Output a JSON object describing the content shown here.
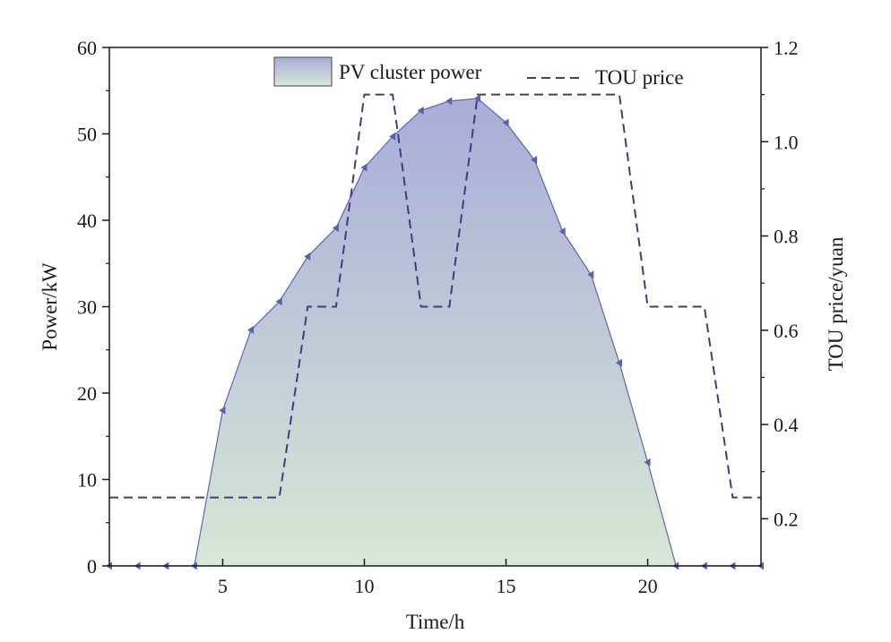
{
  "chart_data": {
    "type": "area",
    "x": [
      1,
      2,
      3,
      4,
      5,
      6,
      7,
      8,
      9,
      10,
      11,
      12,
      13,
      14,
      15,
      16,
      17,
      18,
      19,
      20,
      21,
      22,
      23,
      24
    ],
    "xlabel": "Time/h",
    "xlim": [
      1,
      24
    ],
    "xticks": [
      5,
      10,
      15,
      20
    ],
    "ylabel_left": "Power/kW",
    "ylim_left": [
      0,
      60
    ],
    "yticks_left": [
      0,
      10,
      20,
      30,
      40,
      50,
      60
    ],
    "ylabel_right": "TOU price/yuan",
    "ylim_right": [
      0.1,
      1.2
    ],
    "yticks_right": [
      "0.2",
      "0.4",
      "0.6",
      "0.8",
      "1.0",
      "1.2"
    ],
    "grid": false,
    "legend_position": "top",
    "series": [
      {
        "name": "PV cluster power",
        "axis": "left",
        "style": "area-gradient-with-triangle-markers",
        "values": [
          0,
          0,
          0,
          0,
          18,
          27.3,
          30.6,
          35.8,
          39.1,
          46.1,
          49.7,
          52.7,
          53.8,
          54.1,
          51.3,
          47,
          38.7,
          33.7,
          23.5,
          12,
          0,
          0,
          0,
          0
        ]
      },
      {
        "name": "TOU price",
        "axis": "right",
        "style": "dashed",
        "x": [
          1,
          7,
          8,
          9,
          10,
          11,
          12,
          13,
          14,
          15,
          16,
          17,
          18,
          19,
          20,
          21,
          22,
          23,
          24
        ],
        "values": [
          0.245,
          0.245,
          0.65,
          0.65,
          1.1,
          1.1,
          0.65,
          0.65,
          1.1,
          1.1,
          1.1,
          1.1,
          1.1,
          1.1,
          0.65,
          0.65,
          0.65,
          0.245,
          0.245
        ]
      }
    ]
  },
  "colors": {
    "area_top": "#a9acd8",
    "area_bottom": "#d6e8d6",
    "line": "#5f66b0",
    "marker": "#5a60ac",
    "dash": "#3c3f7d",
    "axis": "#1a1a1a"
  }
}
